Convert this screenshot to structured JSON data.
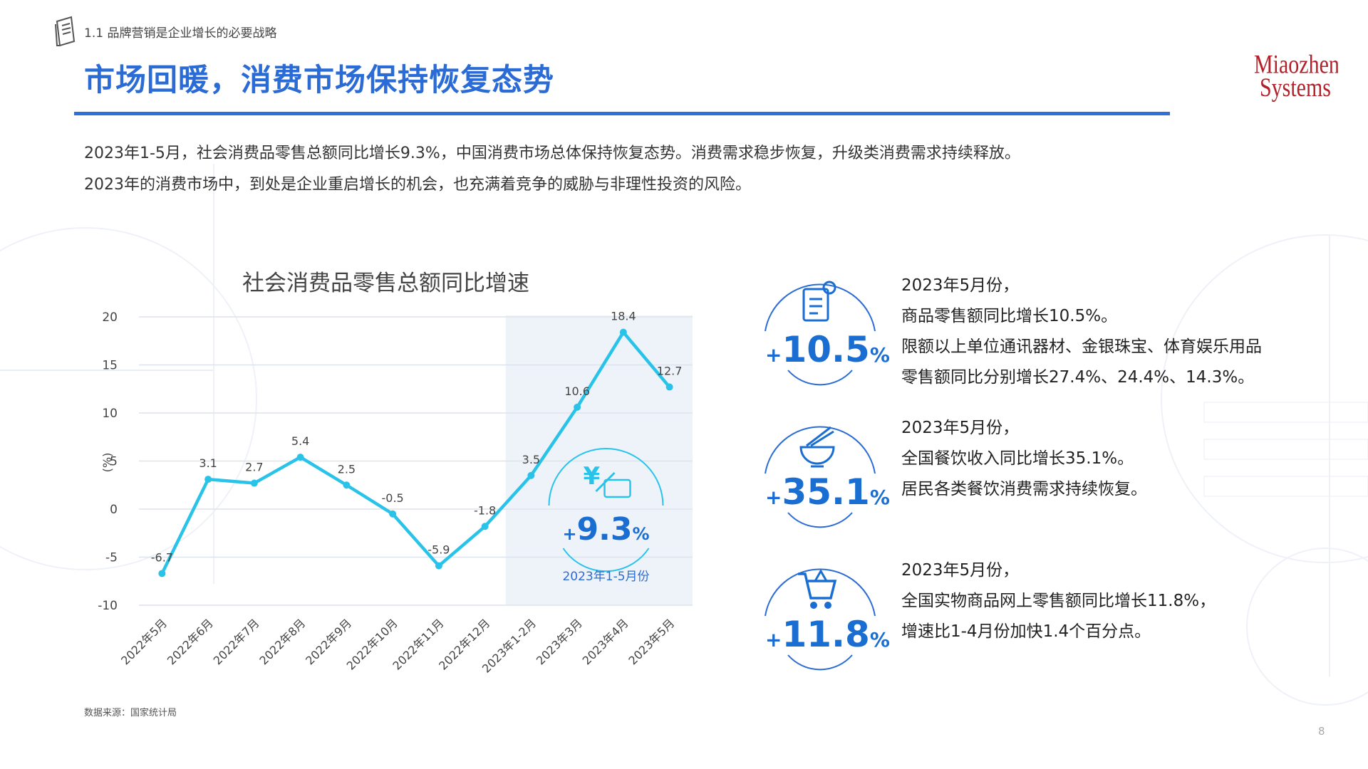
{
  "header": {
    "section": "1.1 品牌营销是企业增长的必要战略",
    "title": "市场回暖，消费市场保持恢复态势",
    "logo_line1": "Miaozhen",
    "logo_line2": "Systems"
  },
  "intro": {
    "line1": "2023年1-5月，社会消费品零售总额同比增长9.3%，中国消费市场总体保持恢复态势。消费需求稳步恢复，升级类消费需求持续释放。",
    "line2": "2023年的消费市场中，到处是企业重启增长的机会，也充满着竞争的威胁与非理性投资的风险。"
  },
  "chart_data": {
    "type": "line",
    "title": "社会消费品零售总额同比增速",
    "ylabel": "(%)",
    "xlabel": "",
    "ylim": [
      -10,
      20
    ],
    "yticks": [
      20,
      15,
      10,
      5,
      0,
      -5,
      -10
    ],
    "categories": [
      "2022年5月",
      "2022年6月",
      "2022年7月",
      "2022年8月",
      "2022年9月",
      "2022年10月",
      "2022年11月",
      "2022年12月",
      "2023年1-2月",
      "2023年3月",
      "2023年4月",
      "2023年5月"
    ],
    "values": [
      -6.7,
      3.1,
      2.7,
      5.4,
      2.5,
      -0.5,
      -5.9,
      -1.8,
      3.5,
      10.6,
      18.4,
      12.7
    ],
    "data_labels": [
      "-6.7",
      "3.1",
      "2.7",
      "5.4",
      "2.5",
      "-0.5",
      "-5.9",
      "-1.8",
      "3.5",
      "10.6",
      "18.4",
      "12.7"
    ],
    "grid": true,
    "line_color": "#29c3ea",
    "highlight": {
      "from_category": "2023年1-2月",
      "to_category": "2023年5月",
      "plus": "+",
      "value": "9.3",
      "unit": "%",
      "caption": "2023年1-5月份",
      "icon": "yuan-card-icon"
    }
  },
  "kpis": [
    {
      "icon": "document-medal-icon",
      "plus": "+",
      "value": "10.5",
      "unit": "%",
      "lines": [
        "2023年5月份，",
        "商品零售额同比增长10.5%。",
        "限额以上单位通讯器材、金银珠宝、体育娱乐用品",
        "零售额同比分别增长27.4%、24.4%、14.3%。"
      ]
    },
    {
      "icon": "noodle-bowl-icon",
      "plus": "+",
      "value": "35.1",
      "unit": "%",
      "lines": [
        "2023年5月份，",
        "全国餐饮收入同比增长35.1%。",
        "居民各类餐饮消费需求持续恢复。"
      ]
    },
    {
      "icon": "shopping-cart-icon",
      "plus": "+",
      "value": "11.8",
      "unit": "%",
      "lines": [
        "2023年5月份，",
        "全国实物商品网上零售额同比增长11.8%，",
        "增速比1-4月份加快1.4个百分点。"
      ]
    }
  ],
  "colors": {
    "title": "#2a6bd6",
    "accent": "#29c3ea",
    "kpi": "#1b6ed1",
    "logo": "#b3202a"
  },
  "footer": {
    "source": "数据来源：国家统计局",
    "page": "8"
  }
}
